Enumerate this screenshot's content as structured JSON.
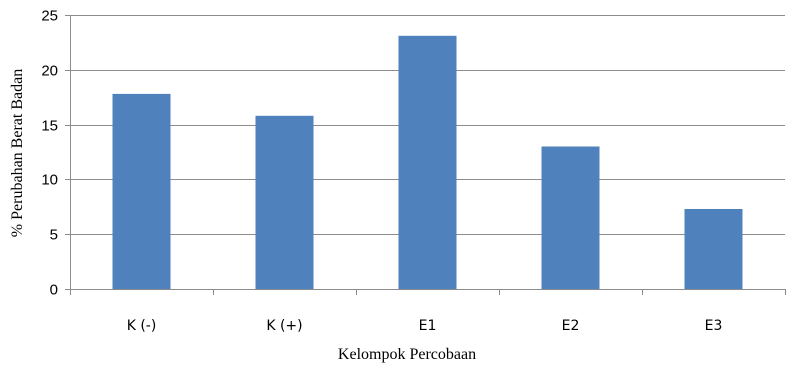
{
  "chart_data": {
    "type": "bar",
    "title": "",
    "xlabel": "Kelompok Percobaan",
    "ylabel": "% Perubahan Berat Badan",
    "categories": [
      "K (-)",
      "K (+)",
      "E1",
      "E2",
      "E3"
    ],
    "values": [
      17.8,
      15.8,
      23.1,
      13.0,
      7.3
    ],
    "ylim": [
      0,
      25
    ],
    "yticks": [
      0,
      5,
      10,
      15,
      20,
      25
    ],
    "grid": "horizontal",
    "legend": "none",
    "colors": {
      "bar": "#4f81bd",
      "grid": "#8c8c8c",
      "axis": "#8c8c8c"
    }
  }
}
